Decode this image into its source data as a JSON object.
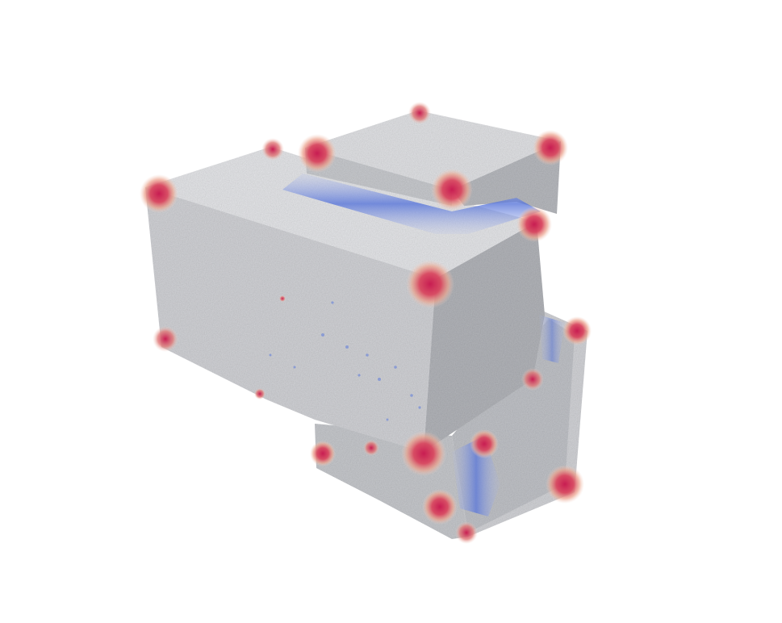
{
  "render": {
    "background_color": "#ffffff",
    "surface_color": "#d6d7da",
    "surface_shade_dark": "#a9abb0",
    "surface_shade_light": "#eeeff1",
    "colormap": {
      "high": "#cc1f55",
      "mid_high": "#e88f7e",
      "neutral": "#dcdcdc",
      "low": "#5d7bdc",
      "mid_low": "#9db0e9"
    }
  }
}
